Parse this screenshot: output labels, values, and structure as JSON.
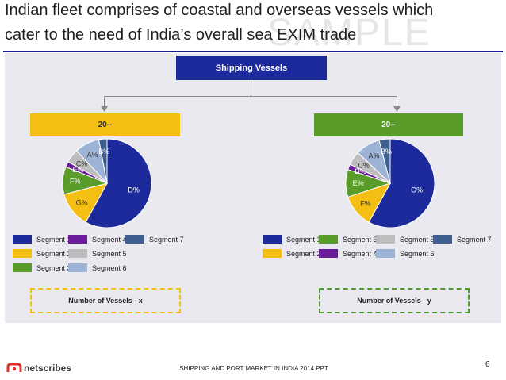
{
  "slide": {
    "title_line1": "Indian fleet comprises of coastal and overseas vessels which",
    "title_line2": "cater to the need of India’s overall sea EXIM trade",
    "watermark": "SAMPLE"
  },
  "diagram": {
    "root_label": "Shipping Vessels",
    "left": {
      "year_label": "20--",
      "footer_label": "Number of Vessels - x",
      "legend": [
        {
          "label": "Segment 1",
          "color": "#1d2a9b"
        },
        {
          "label": "Segment 2",
          "color": "#f4bf12"
        },
        {
          "label": "Segment 3",
          "color": "#5a9c2a"
        },
        {
          "label": "Segment 4",
          "color": "#6a1c9a"
        },
        {
          "label": "Segment 5",
          "color": "#bdbdbd"
        },
        {
          "label": "Segment 6",
          "color": "#9db3d6"
        },
        {
          "label": "Segment 7",
          "color": "#3e5f8f"
        }
      ]
    },
    "right": {
      "year_label": "20--",
      "footer_label": "Number of Vessels - y",
      "legend": [
        {
          "label": "Segment 1",
          "color": "#1d2a9b"
        },
        {
          "label": "Segment 2",
          "color": "#f4bf12"
        },
        {
          "label": "Segment 3",
          "color": "#5a9c2a"
        },
        {
          "label": "Segment 4",
          "color": "#6a1c9a"
        },
        {
          "label": "Segment 5",
          "color": "#bdbdbd"
        },
        {
          "label": "Segment 6",
          "color": "#9db3d6"
        },
        {
          "label": "Segment 7",
          "color": "#3e5f8f"
        }
      ]
    }
  },
  "chart_data": [
    {
      "type": "pie",
      "title": "",
      "slices": [
        {
          "label": "D%",
          "value": 58,
          "color": "#1d2a9b"
        },
        {
          "label": "G%",
          "value": 13,
          "color": "#f4bf12"
        },
        {
          "label": "F%",
          "value": 10,
          "color": "#5a9c2a"
        },
        {
          "label": "E%",
          "value": 2,
          "color": "#6a1c9a"
        },
        {
          "label": "C%",
          "value": 5,
          "color": "#bdbdbd"
        },
        {
          "label": "A%",
          "value": 9,
          "color": "#9db3d6"
        },
        {
          "label": "B%",
          "value": 3,
          "color": "#3e5f8f"
        }
      ]
    },
    {
      "type": "pie",
      "title": "",
      "slices": [
        {
          "label": "G%",
          "value": 58,
          "color": "#1d2a9b"
        },
        {
          "label": "F%",
          "value": 12,
          "color": "#f4bf12"
        },
        {
          "label": "E%",
          "value": 10,
          "color": "#5a9c2a"
        },
        {
          "label": "D%",
          "value": 2,
          "color": "#6a1c9a"
        },
        {
          "label": "C%",
          "value": 5,
          "color": "#bdbdbd"
        },
        {
          "label": "A%",
          "value": 9,
          "color": "#9db3d6"
        },
        {
          "label": "B%",
          "value": 4,
          "color": "#3e5f8f"
        }
      ]
    }
  ],
  "footer": {
    "brand": "netscribes",
    "tagline": "",
    "document": "SHIPPING AND PORT MARKET IN INDIA 2014.PPT",
    "page_number": "6"
  }
}
